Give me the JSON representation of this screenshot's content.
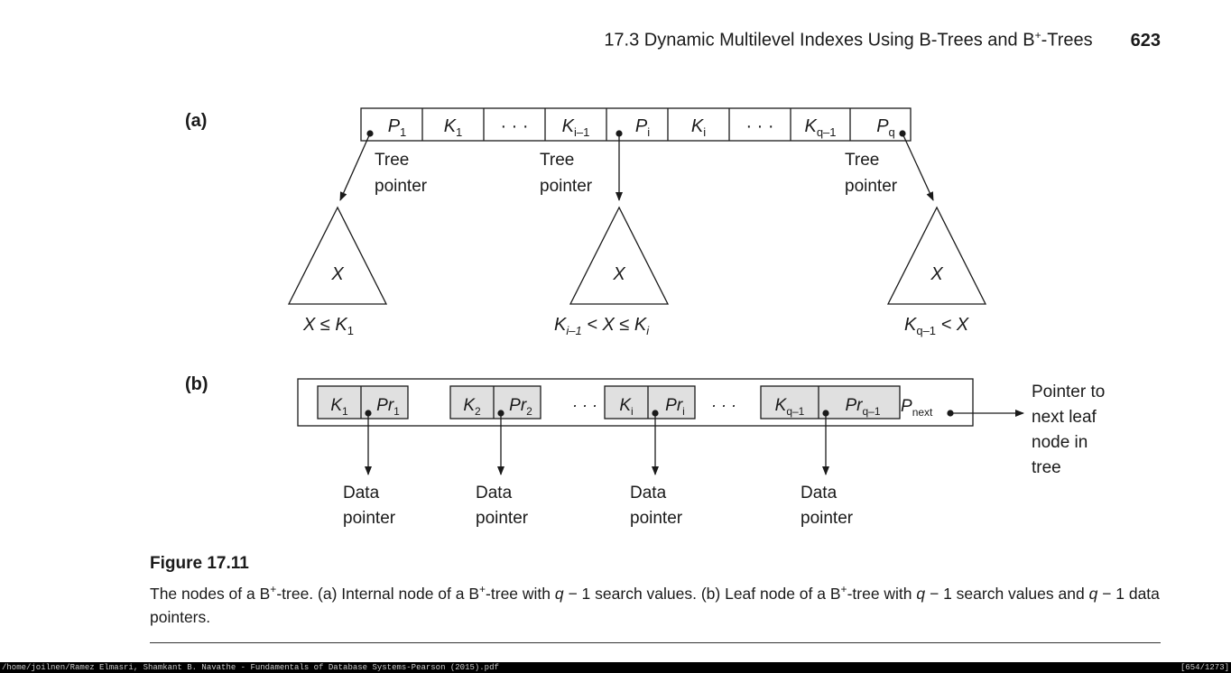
{
  "header": {
    "section": "17.3 Dynamic Multilevel Indexes Using B-Trees and B",
    "sup": "+",
    "section_end": "-Trees",
    "page_number": "623"
  },
  "figure": {
    "part_a_label": "(a)",
    "part_b_label": "(b)",
    "internal_node_cells": [
      {
        "main": "P",
        "sub": "1"
      },
      {
        "main": "K",
        "sub": "1"
      },
      {
        "main": "· · ·",
        "sub": ""
      },
      {
        "main": "K",
        "sub": "i–1"
      },
      {
        "main": "P",
        "sub": "i"
      },
      {
        "main": "K",
        "sub": "i"
      },
      {
        "main": "· · ·",
        "sub": ""
      },
      {
        "main": "K",
        "sub": "q–1"
      },
      {
        "main": "P",
        "sub": "q"
      }
    ],
    "tree_pointer_word1": "Tree",
    "tree_pointer_word2": "pointer",
    "subtree_label": "X",
    "cond1": {
      "a": "X ≤ K",
      "a_sub": "1"
    },
    "cond2": {
      "a": "K",
      "a_sub": "i–1",
      "b": " < X ≤ K",
      "b_sub": "i"
    },
    "cond3": {
      "a": "K",
      "a_sub": "q–1",
      "b": " < X"
    },
    "leaf_pairs": [
      {
        "k": "K",
        "k_sub": "1",
        "pr": "Pr",
        "pr_sub": "1"
      },
      {
        "k": "K",
        "k_sub": "2",
        "pr": "Pr",
        "pr_sub": "2"
      },
      {
        "k": "K",
        "k_sub": "i",
        "pr": "Pr",
        "pr_sub": "i"
      },
      {
        "k": "K",
        "k_sub": "q–1",
        "pr": "Pr",
        "pr_sub": "q–1"
      }
    ],
    "ellipsis": "· · ·",
    "p_next": {
      "main": "P",
      "sub": "next"
    },
    "data_pointer_word1": "Data",
    "data_pointer_word2": "pointer",
    "next_leaf_lines": [
      "Pointer to",
      "next leaf",
      "node in",
      "tree"
    ]
  },
  "caption": {
    "label": "Figure 17.11",
    "t1": "The nodes of a B",
    "t2": "-tree. (a) Internal node of a B",
    "t3": "-tree with ",
    "t4": " − 1 search values. (b) Leaf node of a B",
    "t5": "-tree with ",
    "t6": " − 1 search values and ",
    "t7": " − 1 data pointers.",
    "sup": "+",
    "q": "q"
  },
  "status": {
    "path": "/home/joilnen/Ramez Elmasri, Shamkant B. Navathe - Fundamentals of Database Systems-Pearson (2015).pdf",
    "pages": "[654/1273]"
  }
}
